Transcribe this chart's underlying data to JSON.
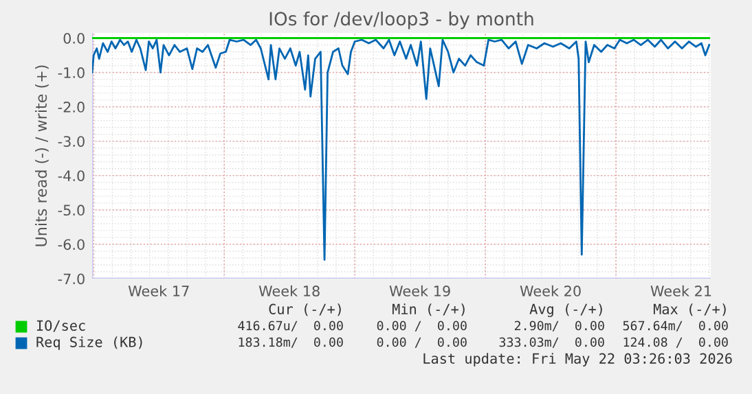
{
  "chart_data": {
    "type": "line",
    "title": "IOs for /dev/loop3 - by month",
    "ylabel": "Units read (-) / write (+)",
    "xlim": [
      "2026-04-19T22:00",
      "2026-05-23T02:00"
    ],
    "xticks": [
      {
        "value": "2026-04-20",
        "label": null
      },
      {
        "value": "2026-04-23T12:00",
        "label": "Week 17"
      },
      {
        "value": "2026-04-27",
        "label": null
      },
      {
        "value": "2026-04-30T12:00",
        "label": "Week 18"
      },
      {
        "value": "2026-05-04",
        "label": null
      },
      {
        "value": "2026-05-07T12:00",
        "label": "Week 19"
      },
      {
        "value": "2026-05-11",
        "label": null
      },
      {
        "value": "2026-05-14T12:00",
        "label": "Week 20"
      },
      {
        "value": "2026-05-18",
        "label": null
      },
      {
        "value": "2026-05-21T12:00",
        "label": "Week 21"
      }
    ],
    "ylim": [
      -7,
      0.15
    ],
    "yticks": [
      {
        "value": 0,
        "label": "0.0"
      },
      {
        "value": -1,
        "label": "-1.0"
      },
      {
        "value": -2,
        "label": "-2.0"
      },
      {
        "value": -3,
        "label": "-3.0"
      },
      {
        "value": -4,
        "label": "-4.0"
      },
      {
        "value": -5,
        "label": "-5.0"
      },
      {
        "value": -6,
        "label": "-6.0"
      },
      {
        "value": -7,
        "label": "-7.0"
      }
    ],
    "grid": true,
    "legend": "bottom left",
    "series": [
      {
        "name": "IO/sec",
        "color": "#00cc00",
        "x": [
          "2026-04-19T22:00",
          "2026-05-23T00:00"
        ],
        "values": [
          0,
          0
        ]
      },
      {
        "name": "Req Size (KB)",
        "color": "#0066b3",
        "x": [
          "2026-04-19T22:00",
          "2026-04-20T00:00",
          "2026-04-20T04:00",
          "2026-04-20T07:00",
          "2026-04-20T12:00",
          "2026-04-20T18:00",
          "2026-04-20T23:00",
          "2026-04-21T04:00",
          "2026-04-21T10:00",
          "2026-04-21T15:00",
          "2026-04-21T20:00",
          "2026-04-22T01:00",
          "2026-04-22T07:00",
          "2026-04-22T12:00",
          "2026-04-22T19:00",
          "2026-04-22T23:00",
          "2026-04-23T04:00",
          "2026-04-23T09:00",
          "2026-04-23T14:00",
          "2026-04-23T18:00",
          "2026-04-24T01:00",
          "2026-04-24T08:00",
          "2026-04-24T15:00",
          "2026-04-25T00:00",
          "2026-04-25T07:00",
          "2026-04-25T13:00",
          "2026-04-25T20:00",
          "2026-04-26T03:00",
          "2026-04-26T13:00",
          "2026-04-26T19:00",
          "2026-04-27T02:00",
          "2026-04-27T07:00",
          "2026-04-27T16:00",
          "2026-04-28T01:00",
          "2026-04-28T10:00",
          "2026-04-28T17:00",
          "2026-04-28T23:00",
          "2026-04-29T09:00",
          "2026-04-29T12:00",
          "2026-04-29T18:00",
          "2026-04-29T23:00",
          "2026-04-30T06:00",
          "2026-04-30T13:00",
          "2026-04-30T20:00",
          "2026-05-01T01:00",
          "2026-05-01T08:00",
          "2026-05-01T12:00",
          "2026-05-01T15:00",
          "2026-05-01T21:00",
          "2026-05-02T04:00",
          "2026-05-02T09:00",
          "2026-05-02T13:00",
          "2026-05-02T20:00",
          "2026-05-03T03:00",
          "2026-05-03T08:00",
          "2026-05-03T15:00",
          "2026-05-03T19:00",
          "2026-05-04T00:00",
          "2026-05-04T09:00",
          "2026-05-04T18:00",
          "2026-05-05T03:00",
          "2026-05-05T13:00",
          "2026-05-05T20:00",
          "2026-05-06T03:00",
          "2026-05-06T10:00",
          "2026-05-06T18:00",
          "2026-05-07T00:00",
          "2026-05-07T08:00",
          "2026-05-07T13:00",
          "2026-05-07T20:00",
          "2026-05-08T01:00",
          "2026-05-08T07:00",
          "2026-05-08T12:00",
          "2026-05-08T17:00",
          "2026-05-09T00:00",
          "2026-05-09T07:00",
          "2026-05-09T14:00",
          "2026-05-09T22:00",
          "2026-05-10T05:00",
          "2026-05-10T13:00",
          "2026-05-10T22:00",
          "2026-05-11T04:00",
          "2026-05-11T12:00",
          "2026-05-11T21:00",
          "2026-05-12T06:00",
          "2026-05-12T15:00",
          "2026-05-12T23:00",
          "2026-05-13T07:00",
          "2026-05-13T18:00",
          "2026-05-14T04:00",
          "2026-05-14T15:00",
          "2026-05-15T01:00",
          "2026-05-15T12:00",
          "2026-05-15T21:00",
          "2026-05-16T00:00",
          "2026-05-16T04:00",
          "2026-05-16T09:00",
          "2026-05-16T13:00",
          "2026-05-16T20:00",
          "2026-05-17T05:00",
          "2026-05-17T13:00",
          "2026-05-17T22:00",
          "2026-05-18T05:00",
          "2026-05-18T14:00",
          "2026-05-18T23:00",
          "2026-05-19T08:00",
          "2026-05-19T17:00",
          "2026-05-20T02:00",
          "2026-05-20T10:00",
          "2026-05-20T19:00",
          "2026-05-21T04:00",
          "2026-05-21T13:00",
          "2026-05-21T22:00",
          "2026-05-22T07:00",
          "2026-05-22T14:00",
          "2026-05-22T19:00",
          "2026-05-23T00:00"
        ],
        "values": [
          -1.0,
          -0.5,
          -0.3,
          -0.6,
          -0.15,
          -0.4,
          -0.1,
          -0.3,
          -0.05,
          -0.2,
          -0.1,
          -0.4,
          -0.05,
          -0.3,
          -0.93,
          -0.1,
          -0.3,
          -0.05,
          -1.0,
          -0.2,
          -0.5,
          -0.2,
          -0.4,
          -0.3,
          -0.9,
          -0.3,
          -0.4,
          -0.2,
          -0.86,
          -0.45,
          -0.4,
          -0.05,
          -0.1,
          -0.05,
          -0.2,
          -0.05,
          -0.3,
          -1.2,
          -0.2,
          -1.2,
          -0.3,
          -0.6,
          -0.3,
          -0.8,
          -0.4,
          -1.5,
          -0.5,
          -1.7,
          -0.6,
          -0.4,
          -6.45,
          -1.0,
          -0.4,
          -0.3,
          -0.8,
          -1.05,
          -0.4,
          -0.1,
          -0.05,
          -0.15,
          -0.05,
          -0.3,
          -0.05,
          -0.5,
          -0.1,
          -0.6,
          -0.2,
          -0.8,
          -0.1,
          -1.77,
          -0.3,
          -0.9,
          -1.4,
          -0.05,
          -0.4,
          -1.0,
          -0.6,
          -0.8,
          -0.5,
          -0.7,
          -0.8,
          -0.05,
          -0.1,
          -0.05,
          -0.3,
          -0.1,
          -0.75,
          -0.2,
          -0.3,
          -0.15,
          -0.25,
          -0.15,
          -0.3,
          -0.1,
          -0.6,
          -6.3,
          -0.1,
          -0.7,
          -0.2,
          -0.4,
          -0.2,
          -0.3,
          -0.05,
          -0.15,
          -0.05,
          -0.2,
          -0.05,
          -0.25,
          -0.05,
          -0.3,
          -0.1,
          -0.3,
          -0.1,
          -0.25,
          -0.15,
          -0.5,
          -0.2
        ]
      }
    ],
    "annotations": [
      "Cur (-/+)",
      "Min (-/+)",
      "Avg (-/+)",
      "Max (-/+)",
      "416.67u/  0.00",
      "0.00 /  0.00",
      "2.90m/  0.00",
      "567.64m/  0.00",
      "183.18m/  0.00",
      "0.00 /  0.00",
      "333.03m/  0.00",
      "124.08 /  0.00",
      "Last update: Fri May 22 03:26:03 2026"
    ]
  }
}
